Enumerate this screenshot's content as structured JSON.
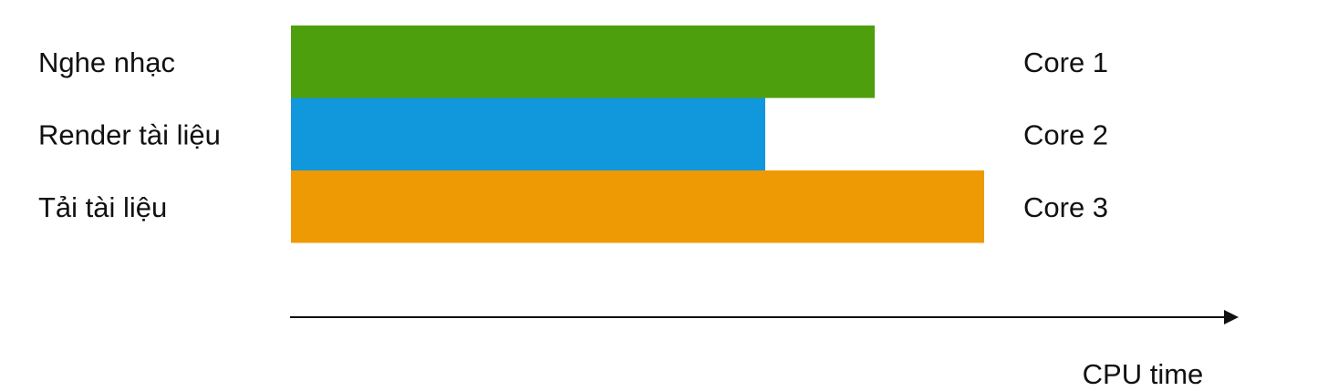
{
  "chart_data": {
    "type": "bar",
    "orientation": "horizontal",
    "xlabel": "CPU time",
    "ylabel": "",
    "categories": [
      "Nghe nhạc",
      "Render tài liệu",
      "Tải tài liệu"
    ],
    "values": [
      64,
      52,
      76
    ],
    "xlim": [
      0,
      100
    ],
    "cores": [
      "Core 1",
      "Core 2",
      "Core 3"
    ],
    "colors": [
      "#4e9f0e",
      "#1197dc",
      "#ee9a05"
    ],
    "grid": false
  }
}
